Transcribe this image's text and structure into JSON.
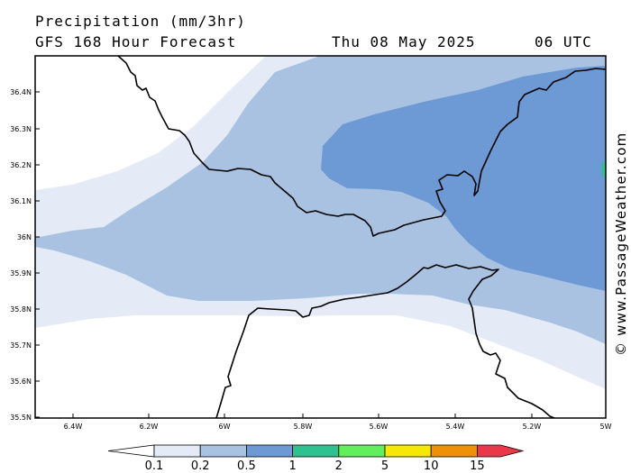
{
  "header": {
    "title": "Precipitation (mm/3hr)",
    "subtitle": "GFS 168 Hour Forecast",
    "date": "Thu 08 May 2025",
    "time": "06 UTC"
  },
  "credit": "© www.PassageWeather.com",
  "axes": {
    "lat_ticks": [
      "36.4N",
      "36.3N",
      "36.2N",
      "36.1N",
      "36N",
      "35.9N",
      "35.8N",
      "35.7N",
      "35.6N",
      "35.5N"
    ],
    "lon_ticks": [
      "6.4W",
      "6.2W",
      "6W",
      "5.8W",
      "5.6W",
      "5.4W",
      "5.2W",
      "5W"
    ]
  },
  "legend": {
    "labels": [
      "0.1",
      "0.2",
      "0.5",
      "1",
      "2",
      "5",
      "10",
      "15"
    ],
    "colors": [
      "#e4ebf6",
      "#a9c2e2",
      "#6d99d4",
      "#2fc291",
      "#61f05c",
      "#f5e805",
      "#f08f08",
      "#e8384a"
    ]
  },
  "colors": {
    "background": "#ffffff",
    "precip_0_1": "#e4ebf6",
    "precip_0_2": "#a9c2e2",
    "precip_0_5": "#6d99d4",
    "precip_1": "#2fc291",
    "coast": "#000000"
  },
  "map": {
    "region": "Strait of Gibraltar",
    "lon_range": [
      "6.5W",
      "5W"
    ],
    "lat_range": [
      "35.5N",
      "36.5N"
    ]
  }
}
